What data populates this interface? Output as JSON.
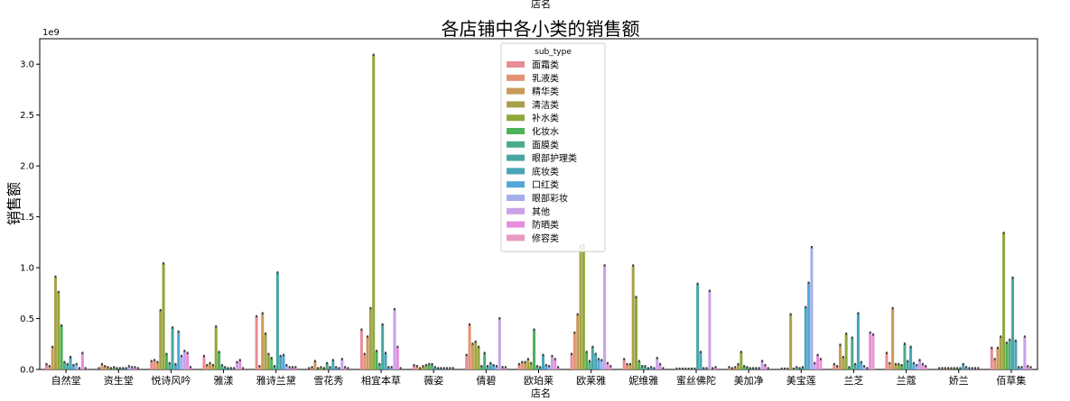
{
  "chart_data": {
    "type": "bar",
    "title": "各店铺中各小类的销售额",
    "top_caption": "店名",
    "xlabel": "店名",
    "ylabel": "销售额",
    "y_multiplier_label": "1e9",
    "ylim": [
      0,
      3.25
    ],
    "yticks": [
      0.0,
      0.5,
      1.0,
      1.5,
      2.0,
      2.5,
      3.0
    ],
    "ytick_labels": [
      "0.0",
      "0.5",
      "1.0",
      "1.5",
      "2.0",
      "2.5",
      "3.0"
    ],
    "grid": false,
    "legend": {
      "title": "sub_type",
      "placement": "top-center"
    },
    "categories": [
      "自然堂",
      "资生堂",
      "悦诗风吟",
      "雅漾",
      "雅诗兰黛",
      "雪花秀",
      "相宜本草",
      "薇姿",
      "倩碧",
      "欧珀莱",
      "欧莱雅",
      "妮维雅",
      "蜜丝佛陀",
      "美加净",
      "美宝莲",
      "兰芝",
      "兰蔻",
      "娇兰",
      "佰草集"
    ],
    "series": [
      {
        "name": "面霜类",
        "color": "#e88d97",
        "values": [
          0.05,
          0.01,
          0.08,
          0.13,
          0.52,
          0.01,
          0.39,
          0.04,
          0.14,
          0.05,
          0.15,
          0.1,
          0.0,
          0.02,
          0.0,
          0.05,
          0.16,
          0.01,
          0.21
        ]
      },
      {
        "name": "乳液类",
        "color": "#e49372",
        "values": [
          0.03,
          0.05,
          0.09,
          0.04,
          0.03,
          0.02,
          0.15,
          0.03,
          0.44,
          0.07,
          0.36,
          0.05,
          0.0,
          0.01,
          0.0,
          0.03,
          0.06,
          0.01,
          0.1
        ]
      },
      {
        "name": "精华类",
        "color": "#c99b5a",
        "values": [
          0.22,
          0.03,
          0.07,
          0.06,
          0.55,
          0.08,
          0.32,
          0.01,
          0.25,
          0.07,
          0.54,
          0.05,
          0.0,
          0.02,
          0.0,
          0.24,
          0.6,
          0.01,
          0.21
        ]
      },
      {
        "name": "清洁类",
        "color": "#a8a14b",
        "values": [
          0.91,
          0.02,
          0.58,
          0.04,
          0.35,
          0.01,
          0.6,
          0.03,
          0.27,
          0.1,
          1.21,
          1.02,
          0.0,
          0.05,
          0.54,
          0.12,
          0.05,
          0.01,
          0.32
        ]
      },
      {
        "name": "补水类",
        "color": "#8ea93a",
        "values": [
          0.76,
          0.01,
          1.04,
          0.42,
          0.15,
          0.02,
          3.09,
          0.04,
          0.22,
          0.06,
          1.22,
          0.71,
          0.0,
          0.17,
          0.0,
          0.35,
          0.05,
          0.01,
          1.34
        ]
      },
      {
        "name": "化妆水",
        "color": "#4fb15a",
        "values": [
          0.43,
          0.02,
          0.15,
          0.17,
          0.11,
          0.01,
          0.18,
          0.05,
          0.03,
          0.39,
          0.17,
          0.08,
          0.0,
          0.03,
          0.02,
          0.02,
          0.04,
          0.01,
          0.26
        ]
      },
      {
        "name": "面膜类",
        "color": "#4bab8a",
        "values": [
          0.07,
          0.01,
          0.06,
          0.04,
          0.03,
          0.06,
          0.05,
          0.05,
          0.16,
          0.03,
          0.08,
          0.03,
          0.0,
          0.02,
          0.01,
          0.31,
          0.25,
          0.01,
          0.29
        ]
      },
      {
        "name": "眼部护理类",
        "color": "#48a6a1",
        "values": [
          0.05,
          0.01,
          0.41,
          0.02,
          0.95,
          0.02,
          0.44,
          0.02,
          0.03,
          0.02,
          0.22,
          0.03,
          0.84,
          0.01,
          0.02,
          0.05,
          0.08,
          0.01,
          0.9
        ]
      },
      {
        "name": "底妆类",
        "color": "#4aa5b8",
        "values": [
          0.12,
          0.01,
          0.05,
          0.01,
          0.13,
          0.09,
          0.16,
          0.01,
          0.06,
          0.14,
          0.15,
          0.01,
          0.17,
          0.01,
          0.61,
          0.55,
          0.22,
          0.05,
          0.28
        ]
      },
      {
        "name": "口红类",
        "color": "#53a6d8",
        "values": [
          0.04,
          0.01,
          0.37,
          0.01,
          0.14,
          0.02,
          0.02,
          0.01,
          0.04,
          0.04,
          0.1,
          0.02,
          0.01,
          0.01,
          0.85,
          0.07,
          0.06,
          0.02,
          0.02
        ]
      },
      {
        "name": "眼部彩妆",
        "color": "#a4aee9",
        "values": [
          0.05,
          0.03,
          0.13,
          0.01,
          0.04,
          0.01,
          0.02,
          0.01,
          0.03,
          0.03,
          0.09,
          0.01,
          0.01,
          0.01,
          1.2,
          0.03,
          0.04,
          0.01,
          0.02
        ]
      },
      {
        "name": "其他",
        "color": "#c9a2e8",
        "values": [
          0.01,
          0.02,
          0.18,
          0.07,
          0.02,
          0.1,
          0.59,
          0.01,
          0.5,
          0.13,
          1.02,
          0.11,
          0.77,
          0.08,
          0.06,
          0.01,
          0.09,
          0.01,
          0.32
        ]
      },
      {
        "name": "防晒类",
        "color": "#e58ddc",
        "values": [
          0.16,
          0.02,
          0.16,
          0.09,
          0.02,
          0.02,
          0.22,
          0.01,
          0.02,
          0.1,
          0.06,
          0.05,
          0.01,
          0.04,
          0.14,
          0.36,
          0.05,
          0.01,
          0.03
        ]
      },
      {
        "name": "修容类",
        "color": "#e89ac4",
        "values": [
          0.01,
          0.01,
          0.02,
          0.01,
          0.02,
          0.01,
          0.01,
          0.01,
          0.02,
          0.02,
          0.03,
          0.01,
          0.02,
          0.01,
          0.1,
          0.34,
          0.03,
          0.01,
          0.02
        ]
      }
    ]
  }
}
